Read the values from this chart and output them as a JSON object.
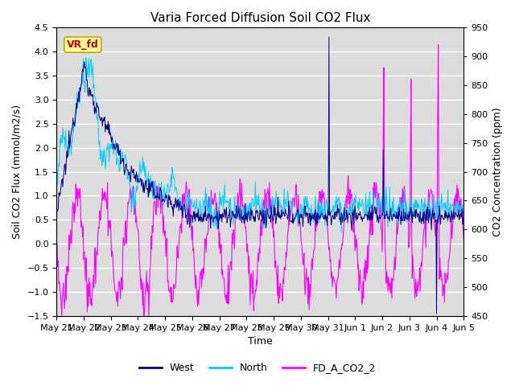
{
  "title": "Varia Forced Diffusion Soil CO2 Flux",
  "xlabel": "Time",
  "ylabel_left": "Soil CO2 Flux (mmol/m2/s)",
  "ylabel_right": "CO2 Concentration (ppm)",
  "ylim_left": [
    -1.5,
    4.5
  ],
  "ylim_right": [
    450,
    950
  ],
  "xtick_labels": [
    "May 21",
    "May 22",
    "May 23",
    "May 24",
    "May 25",
    "May 26",
    "May 27",
    "May 28",
    "May 29",
    "May 30",
    "May 31",
    "Jun 1",
    "Jun 2",
    "Jun 3",
    "Jun 4",
    "Jun 5"
  ],
  "color_west": "#00008B",
  "color_north": "#00CCFF",
  "color_co2": "#FF00FF",
  "annotation_text": "VR_fd",
  "annotation_color": "#CC0000",
  "annotation_bg": "#FFFF99",
  "bg_color": "#DCDCDC",
  "grid_color": "#FFFFFF",
  "title_fontsize": 11,
  "label_fontsize": 9,
  "tick_fontsize": 8,
  "legend_fontsize": 9
}
